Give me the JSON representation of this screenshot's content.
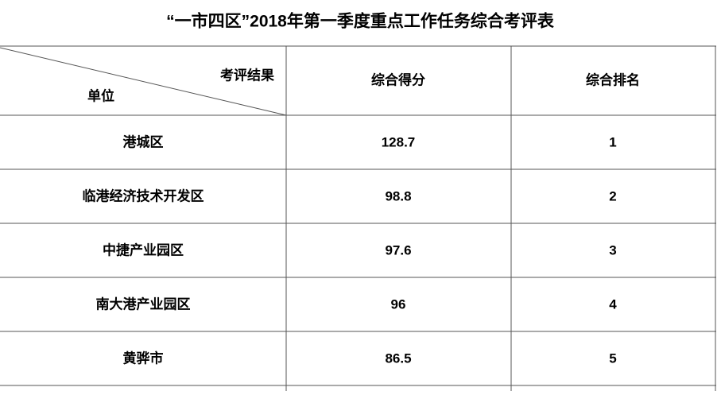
{
  "header": {
    "title": "“一市四区”2018年第一季度重点工作任务综合考评表"
  },
  "table": {
    "corner": {
      "top_right": "考评结果",
      "bottom_left": "单位"
    },
    "columns": [
      "综合得分",
      "综合排名"
    ],
    "rows": [
      [
        "港城区",
        128.7,
        1
      ],
      [
        "临港经济技术开发区",
        98.8,
        2
      ],
      [
        "中捷产业园区",
        97.6,
        3
      ],
      [
        "南大港产业园区",
        96,
        4
      ],
      [
        "黄骅市",
        86.5,
        5
      ]
    ]
  }
}
